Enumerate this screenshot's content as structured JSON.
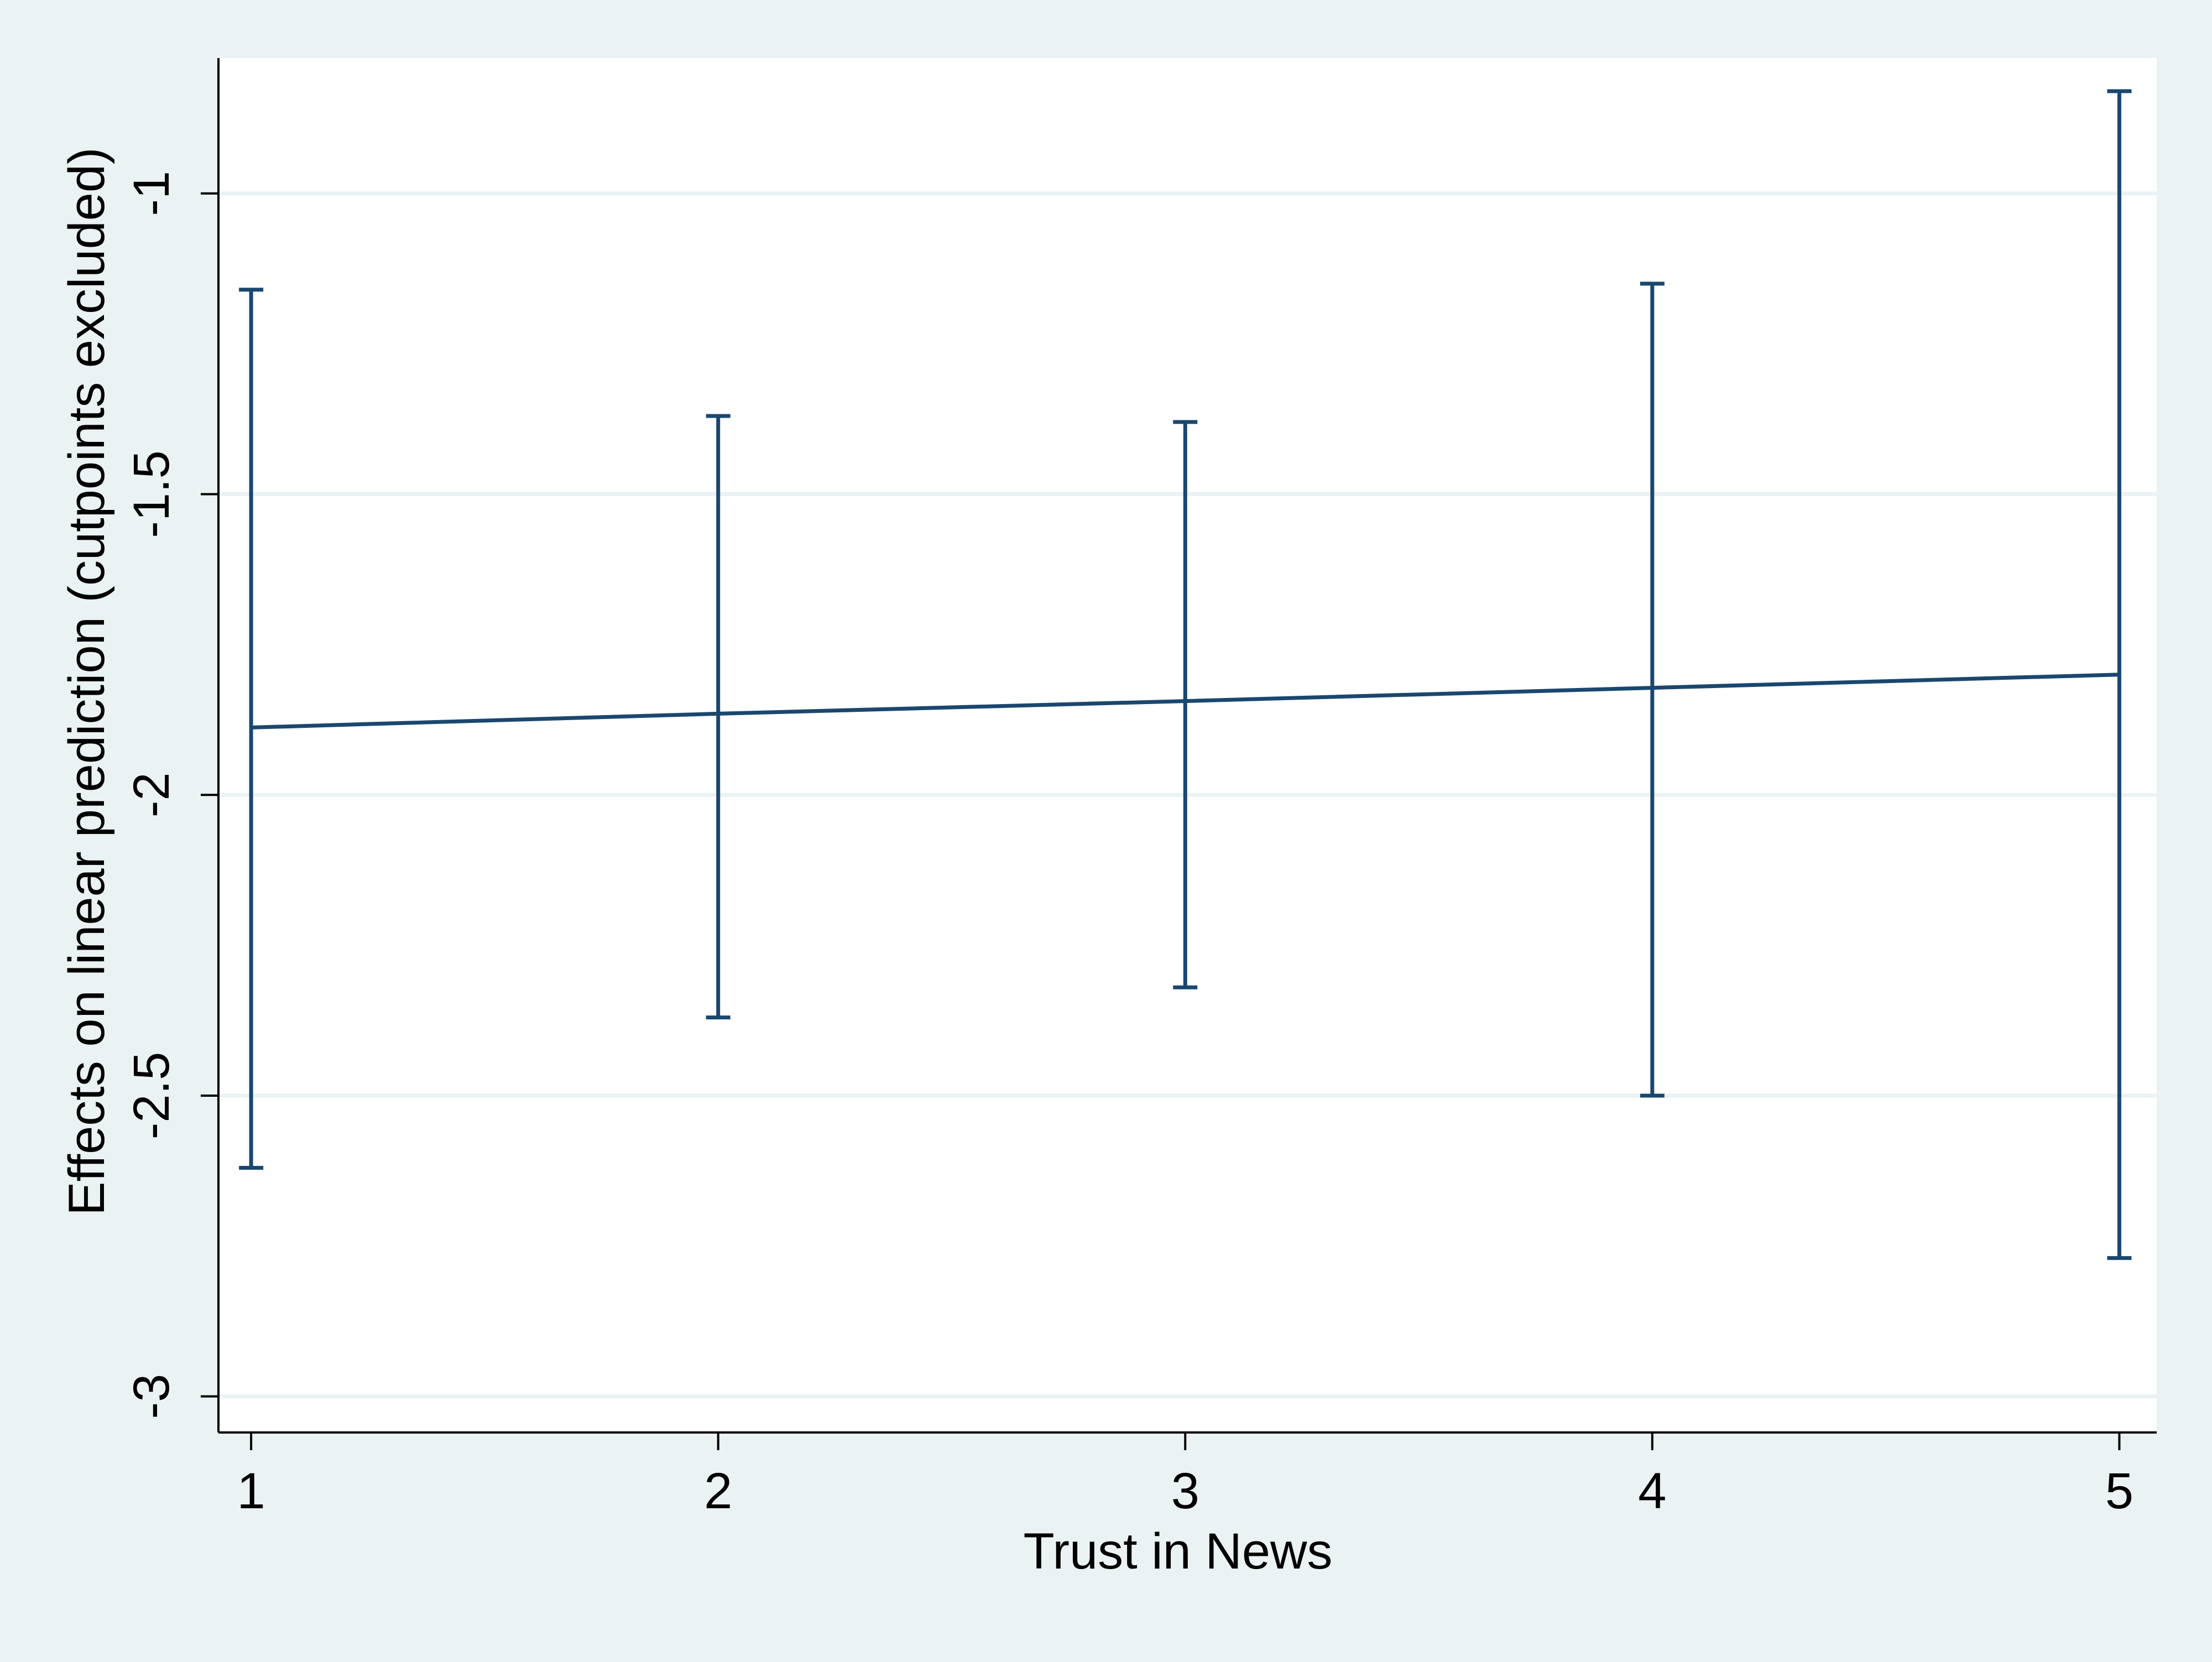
{
  "chart_data": {
    "type": "line",
    "xlabel": "Trust in News",
    "ylabel": "Effects on linear prediction (cutpoints excluded)",
    "x": [
      1,
      2,
      3,
      4,
      5
    ],
    "xticks": [
      "1",
      "2",
      "3",
      "4",
      "5"
    ],
    "xlim": [
      0.93,
      5.08
    ],
    "ylim": [
      -3.06,
      -0.775
    ],
    "yticks": [
      -3,
      -2.5,
      -2,
      -1.5,
      -1
    ],
    "ytick_labels": [
      "-3",
      "-2.5",
      "-2",
      "-1.5",
      "-1"
    ],
    "grid": true,
    "series": [
      {
        "y": [
          -1.888,
          -1.865,
          -1.844,
          -1.822,
          -1.8
        ],
        "ci_lower": [
          -2.62,
          -2.37,
          -2.32,
          -2.5,
          -2.77
        ],
        "ci_upper": [
          -1.16,
          -1.37,
          -1.38,
          -1.15,
          -0.83
        ]
      }
    ],
    "colors": {
      "line": "#1a476f",
      "grid": "#eaf2f3",
      "plot_bg": "#ffffff",
      "outer_bg": "#eaf2f3",
      "axis": "#000000"
    }
  }
}
